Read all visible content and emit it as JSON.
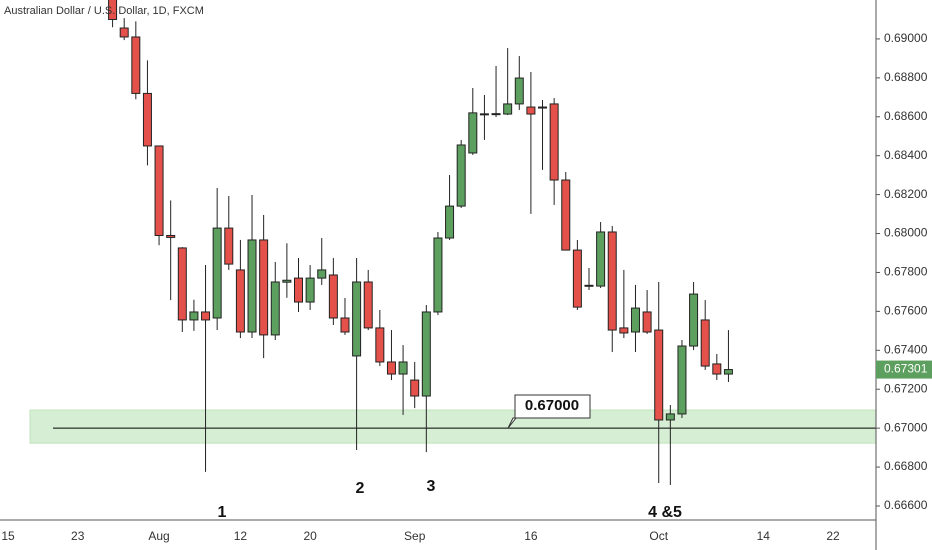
{
  "chart_data": {
    "type": "candlestick",
    "title": "Australian Dollar / U.S. Dollar, 1D, FXCM",
    "categories": [
      "15",
      null,
      null,
      null,
      null,
      null,
      "23",
      null,
      null,
      null,
      null,
      null,
      null,
      "Aug",
      null,
      null,
      null,
      null,
      null,
      null,
      "12",
      null,
      null,
      null,
      null,
      null,
      "20",
      null,
      null,
      null,
      null,
      null,
      null,
      null,
      null,
      "Sep",
      null,
      null,
      null,
      null,
      null,
      null,
      null,
      null,
      null,
      "16",
      null,
      null,
      null,
      null,
      null,
      null,
      null,
      null,
      null,
      null,
      "Oct",
      null,
      null,
      null,
      null,
      null,
      null,
      null,
      null,
      "14",
      null,
      null,
      null,
      null,
      null,
      "22",
      null,
      null,
      null
    ],
    "open": [
      null,
      null,
      null,
      null,
      null,
      null,
      null,
      null,
      null,
      0.6925,
      0.69056,
      0.6901,
      0.6872,
      0.6845,
      0.6799,
      0.67926,
      0.67556,
      0.67597,
      0.67566,
      0.68028,
      0.67813,
      0.67494,
      0.67967,
      0.67479,
      0.6775,
      0.67771,
      0.67648,
      0.67771,
      0.67787,
      0.67566,
      0.67371,
      0.67751,
      0.67515,
      0.6734,
      0.67278,
      0.67247,
      0.67165,
      0.67597,
      0.67977,
      0.68141,
      0.68414,
      0.6861,
      0.68611,
      0.68614,
      0.68666,
      0.6865,
      0.6865,
      0.68666,
      0.68275,
      0.67915,
      0.6773,
      0.6773,
      0.68008,
      0.67515,
      0.67494,
      0.67597,
      0.67504,
      0.67042,
      0.67073,
      0.67422,
      0.67556,
      0.6733,
      0.67278,
      null,
      null,
      null,
      null,
      null,
      null,
      null,
      null,
      null,
      null,
      null,
      null
    ],
    "high": [
      null,
      null,
      null,
      null,
      null,
      null,
      null,
      null,
      null,
      0.693,
      0.69107,
      0.6909,
      0.6889,
      0.6845,
      0.6817,
      0.6793,
      0.6766,
      0.67838,
      0.68234,
      0.68193,
      0.67967,
      0.68198,
      0.68095,
      0.67854,
      0.6795,
      0.67874,
      0.67838,
      0.67977,
      0.67874,
      0.67669,
      0.67874,
      0.67813,
      0.67607,
      0.67504,
      0.67427,
      0.6734,
      0.67633,
      0.68008,
      0.68301,
      0.68481,
      0.68748,
      0.68712,
      0.68861,
      0.68953,
      0.68912,
      0.6883,
      0.68686,
      0.68696,
      0.68316,
      0.67967,
      0.67823,
      0.68059,
      0.68039,
      0.67813,
      0.67736,
      0.6771,
      0.67751,
      0.67119,
      0.67453,
      0.67751,
      0.67658,
      0.67381,
      0.67504,
      null,
      null,
      null,
      null,
      null,
      null,
      null,
      null,
      null,
      null,
      null,
      null
    ],
    "low": [
      null,
      null,
      null,
      null,
      null,
      null,
      null,
      null,
      null,
      0.6906,
      0.68994,
      0.6869,
      0.6835,
      0.6794,
      0.67658,
      0.67494,
      0.675,
      0.66775,
      0.67504,
      0.67813,
      0.67463,
      0.67463,
      0.6736,
      0.67453,
      0.6767,
      0.67597,
      0.67607,
      0.67736,
      0.6753,
      0.67479,
      0.66888,
      0.67504,
      0.67319,
      0.67247,
      0.67068,
      0.67103,
      0.66877,
      0.67581,
      0.67967,
      0.68131,
      0.68404,
      0.68481,
      0.68599,
      0.68609,
      0.68635,
      0.68101,
      0.68327,
      0.68147,
      0.67915,
      0.67607,
      0.6771,
      0.6772,
      0.67391,
      0.67463,
      0.67391,
      0.67484,
      0.66718,
      0.66708,
      0.67052,
      0.67401,
      0.67299,
      0.67247,
      0.67237,
      null,
      null,
      null,
      null,
      null,
      null,
      null,
      null,
      null,
      null,
      null,
      null
    ],
    "close": [
      null,
      null,
      null,
      null,
      null,
      null,
      null,
      null,
      null,
      0.691,
      0.6901,
      0.6872,
      0.6845,
      0.6799,
      0.6798,
      0.67556,
      0.67597,
      0.67556,
      0.68028,
      0.67843,
      0.67494,
      0.67967,
      0.67479,
      0.67751,
      0.6776,
      0.67648,
      0.67771,
      0.67813,
      0.67566,
      0.67494,
      0.67751,
      0.67515,
      0.6734,
      0.67278,
      0.6734,
      0.67165,
      0.67597,
      0.67977,
      0.68141,
      0.68455,
      0.6862,
      0.68615,
      0.68616,
      0.68666,
      0.68799,
      0.68614,
      0.68645,
      0.68275,
      0.67915,
      0.67622,
      0.67734,
      0.68008,
      0.67504,
      0.67489,
      0.67617,
      0.67494,
      0.67042,
      0.67073,
      0.67422,
      0.67689,
      0.67319,
      0.67278,
      0.67301,
      null,
      null,
      null,
      null,
      null,
      null,
      null,
      null,
      null,
      null,
      null,
      null
    ],
    "up_color": "#5c9f5e",
    "down_color": "#e4514a",
    "ylim": [
      0.66528,
      0.692
    ],
    "yticks": [
      {
        "value": 0.666,
        "label": "0.66600"
      },
      {
        "value": 0.668,
        "label": "0.66800"
      },
      {
        "value": 0.67,
        "label": "0.67000"
      },
      {
        "value": 0.672,
        "label": "0.67200"
      },
      {
        "value": 0.674,
        "label": "0.67400"
      },
      {
        "value": 0.676,
        "label": "0.67600"
      },
      {
        "value": 0.678,
        "label": "0.67800"
      },
      {
        "value": 0.68,
        "label": "0.68000"
      },
      {
        "value": 0.682,
        "label": "0.68200"
      },
      {
        "value": 0.684,
        "label": "0.68400"
      },
      {
        "value": 0.686,
        "label": "0.68600"
      },
      {
        "value": 0.688,
        "label": "0.68800"
      },
      {
        "value": 0.69,
        "label": "0.69000"
      }
    ],
    "last_price": {
      "value": 0.67301,
      "label": "0.67301"
    },
    "zone": [
      0.66923,
      0.67093
    ],
    "level": {
      "value": 0.67,
      "label": "0.67000"
    },
    "annotations": [
      "1",
      "2",
      "3",
      "4 &5"
    ]
  }
}
